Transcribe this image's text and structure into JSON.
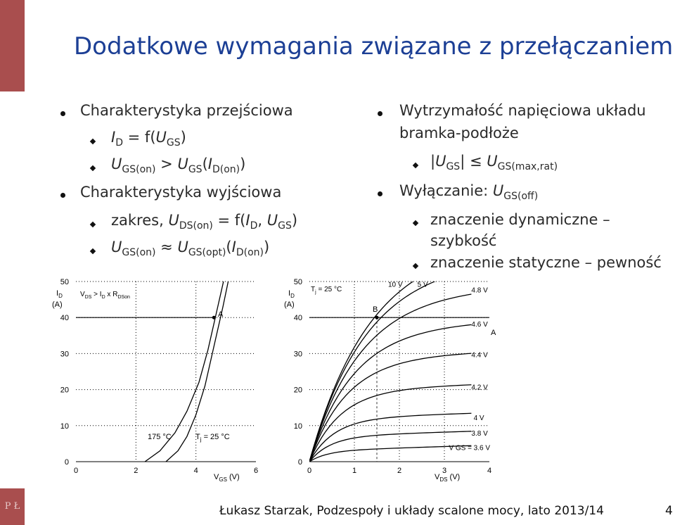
{
  "slide": {
    "title": "Dodatkowe wymagania związane z przełączaniem",
    "footer": "Łukasz Starzak, Podzespoły i układy scalone mocy, lato 2013/14",
    "page_number": "4",
    "logo_text": "P Ł"
  },
  "left_list": {
    "item1": "Charakterystyka przejściowa",
    "item1_sub1": "I D = f(U GS)",
    "item1_sub2": "U GS(on) > U GS(I D(on))",
    "item2": "Charakterystyka wyjściowa",
    "item2_sub1": "zakres, U DS(on) = f(I D, U GS)",
    "item2_sub2": "U GS(on) ≈ U GS(opt)(I D(on))"
  },
  "right_list": {
    "item1_line1": "Wytrzymałość napięciowa układu",
    "item1_line2": "bramka-podłoże",
    "item1_sub1": "|U GS| ≤ U GS(max,rat)",
    "item2": "Wyłączanie: U GS(off)",
    "item2_sub1_line1": "znaczenie dynamiczne –",
    "item2_sub1_line2": "szybkość",
    "item2_sub2": "znaczenie statyczne – pewność"
  },
  "chart_data": [
    {
      "type": "line",
      "title": "",
      "ylabel": "I D (A)",
      "xlabel": "V GS (V)",
      "xlim": [
        0,
        6
      ],
      "ylim": [
        0,
        50
      ],
      "x_ticks": [
        "0",
        "2",
        "4",
        "6"
      ],
      "y_ticks": [
        "0",
        "10",
        "20",
        "30",
        "40",
        "50"
      ],
      "condition": "V DS > I D x R DSon",
      "grid": true,
      "series": [
        {
          "name": "T j = 25 °C",
          "x": [
            3.0,
            3.4,
            3.7,
            4.0,
            4.3,
            4.6,
            4.9,
            5.2
          ],
          "y": [
            0,
            3,
            7,
            13,
            21,
            32,
            43,
            55
          ]
        },
        {
          "name": "175 °C",
          "x": [
            2.3,
            2.8,
            3.3,
            3.7,
            4.1,
            4.4,
            4.7,
            5.0
          ],
          "y": [
            0,
            3,
            8,
            14,
            22,
            31,
            42,
            53
          ]
        }
      ],
      "annotations": [
        "A",
        "175 °C",
        "T j = 25 °C"
      ],
      "point_A": {
        "x": 4.6,
        "y": 40
      }
    },
    {
      "type": "line",
      "title": "",
      "ylabel": "I D (A)",
      "xlabel": "V DS (V)",
      "xlim": [
        0,
        4
      ],
      "ylim": [
        0,
        50
      ],
      "x_ticks": [
        "0",
        "1",
        "2",
        "3",
        "4"
      ],
      "y_ticks": [
        "0",
        "10",
        "20",
        "30",
        "40",
        "50"
      ],
      "condition": "T j = 25 °C",
      "grid": true,
      "series": [
        {
          "name": "V GS = 3.6 V",
          "ylim_value": 3
        },
        {
          "name": "3.8 V",
          "ylim_value": 7
        },
        {
          "name": "4 V",
          "ylim_value": 12
        },
        {
          "name": "4.2 V",
          "ylim_value": 20
        },
        {
          "name": "4.4 V",
          "ylim_value": 29
        },
        {
          "name": "4.6 V",
          "ylim_value": 37.5
        },
        {
          "name": "4.8 V",
          "ylim_value": 47
        },
        {
          "name": "5 V",
          "ylim_value": 55
        },
        {
          "name": "10 V",
          "ylim_value": 60
        }
      ],
      "annotations": [
        "A",
        "B"
      ],
      "point_B": {
        "x": 1.5,
        "y": 40
      },
      "point_A_label": "A"
    }
  ]
}
